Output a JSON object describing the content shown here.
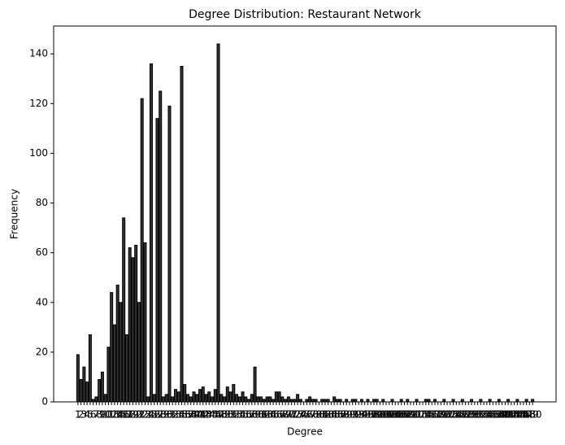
{
  "chart_data": {
    "type": "bar",
    "title": "Degree Distribution: Restaurant Network",
    "x_label": "Degree",
    "y_label": "Frequency",
    "categories": [
      1,
      2,
      3,
      4,
      5,
      6,
      7,
      8,
      9,
      10,
      11,
      12,
      13,
      14,
      15,
      16,
      17,
      18,
      19,
      20,
      21,
      22,
      23,
      24,
      25,
      26,
      27,
      28,
      29,
      30,
      31,
      32,
      33,
      34,
      35,
      36,
      37,
      38,
      39,
      40,
      41,
      42,
      43,
      44,
      45,
      46,
      47,
      48,
      49,
      50,
      51,
      52,
      53,
      54,
      55,
      56,
      57,
      58,
      59,
      60,
      61,
      62,
      63,
      64,
      65,
      66,
      67,
      68,
      69,
      70,
      71,
      72,
      73,
      74,
      75,
      76,
      77,
      78,
      79,
      80,
      81,
      82,
      83,
      84,
      85,
      86,
      87,
      88,
      89,
      90,
      91,
      92,
      93,
      94,
      95,
      96,
      97,
      98,
      99,
      100,
      101,
      102,
      103,
      104,
      105,
      106,
      107,
      108,
      109,
      110,
      111,
      112,
      113,
      114,
      115,
      116,
      117,
      118,
      119,
      120,
      121,
      122,
      123,
      124,
      125,
      126,
      127,
      128,
      129,
      130,
      131,
      132,
      133,
      134,
      135,
      136,
      137,
      138,
      139,
      140,
      141,
      142,
      143,
      144,
      145,
      146,
      147,
      148,
      149,
      150
    ],
    "values": [
      19,
      9,
      14,
      8,
      27,
      1,
      2,
      9,
      12,
      3,
      22,
      44,
      31,
      47,
      40,
      74,
      27,
      62,
      58,
      63,
      40,
      122,
      64,
      2,
      136,
      3,
      114,
      125,
      2,
      3,
      119,
      2,
      5,
      4,
      135,
      7,
      3,
      2,
      4,
      3,
      5,
      6,
      3,
      4,
      2,
      5,
      144,
      3,
      2,
      6,
      4,
      7,
      3,
      2,
      4,
      2,
      1,
      3,
      14,
      2,
      2,
      1,
      2,
      2,
      1,
      4,
      4,
      2,
      1,
      2,
      1,
      1,
      3,
      1,
      0,
      1,
      2,
      1,
      1,
      0,
      1,
      1,
      1,
      0,
      2,
      1,
      1,
      0,
      1,
      0,
      1,
      1,
      0,
      1,
      0,
      1,
      0,
      1,
      1,
      0,
      1,
      0,
      0,
      1,
      0,
      0,
      1,
      0,
      1,
      0,
      0,
      1,
      0,
      0,
      1,
      1,
      0,
      1,
      0,
      0,
      1,
      0,
      0,
      1,
      0,
      0,
      1,
      0,
      0,
      1,
      0,
      0,
      1,
      0,
      0,
      1,
      0,
      0,
      1,
      0,
      0,
      1,
      0,
      0,
      1,
      0,
      0,
      1,
      0,
      1
    ],
    "color": "#333333",
    "edgecolor": "#000000",
    "ylim": [
      0,
      151.2
    ],
    "yticks": [
      0,
      20,
      40,
      60,
      80,
      100,
      120,
      140
    ],
    "grid": false
  }
}
